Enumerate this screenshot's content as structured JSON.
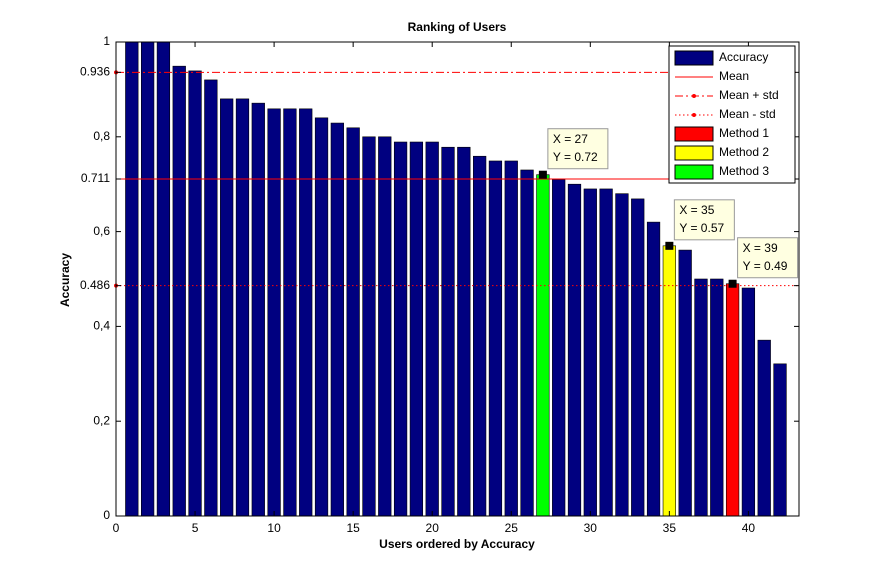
{
  "chart_data": {
    "type": "bar",
    "title": "Ranking of Users",
    "xlabel": "Users ordered by Accuracy",
    "ylabel": "Accuracy",
    "x": [
      1,
      2,
      3,
      4,
      5,
      6,
      7,
      8,
      9,
      10,
      11,
      12,
      13,
      14,
      15,
      16,
      17,
      18,
      19,
      20,
      21,
      22,
      23,
      24,
      25,
      26,
      27,
      28,
      29,
      30,
      31,
      32,
      33,
      34,
      35,
      36,
      37,
      38,
      39,
      40,
      41,
      42
    ],
    "series": [
      {
        "name": "Accuracy",
        "color": "#000080",
        "values": [
          1,
          1,
          1,
          0.949,
          0.939,
          0.92,
          0.88,
          0.88,
          0.871,
          0.859,
          0.859,
          0.859,
          0.84,
          0.829,
          0.819,
          0.8,
          0.8,
          0.789,
          0.789,
          0.789,
          0.778,
          0.778,
          0.759,
          0.749,
          0.749,
          0.73,
          0.72,
          0.71,
          0.7,
          0.69,
          0.69,
          0.68,
          0.669,
          0.62,
          0.57,
          0.561,
          0.5,
          0.5,
          0.49,
          0.481,
          0.371,
          0.321
        ]
      }
    ],
    "highlights": [
      {
        "name": "Method 1",
        "color": "#ff0000",
        "x": 39
      },
      {
        "name": "Method 2",
        "color": "#ffff00",
        "x": 35
      },
      {
        "name": "Method 3",
        "color": "#00ff00",
        "x": 27
      }
    ],
    "reference_lines": [
      {
        "name": "Mean",
        "value": 0.711,
        "color": "#ff0000",
        "style": "solid"
      },
      {
        "name": "Mean + std",
        "value": 0.936,
        "color": "#ff0000",
        "style": "dashdot"
      },
      {
        "name": "Mean - std",
        "value": 0.486,
        "color": "#ff0000",
        "style": "dotted"
      }
    ],
    "annotations": [
      {
        "x": 27,
        "y": 0.72,
        "x_label": "X = 27",
        "y_label": "Y = 0.72"
      },
      {
        "x": 35,
        "y": 0.57,
        "x_label": "X = 35",
        "y_label": "Y = 0.57"
      },
      {
        "x": 39,
        "y": 0.49,
        "x_label": "X = 39",
        "y_label": "Y = 0.49"
      }
    ],
    "xlim": [
      0,
      43.2
    ],
    "ylim": [
      0,
      1
    ],
    "xticks": [
      0,
      5,
      10,
      15,
      20,
      25,
      30,
      35,
      40
    ],
    "yticks": [
      0,
      {
        "value": 0.2,
        "label": "0,2"
      },
      {
        "value": 0.4,
        "label": "0,4"
      },
      0.486,
      {
        "value": 0.6,
        "label": "0,6"
      },
      0.711,
      {
        "value": 0.8,
        "label": "0,8"
      },
      0.936,
      1
    ],
    "legend": "northeast"
  }
}
